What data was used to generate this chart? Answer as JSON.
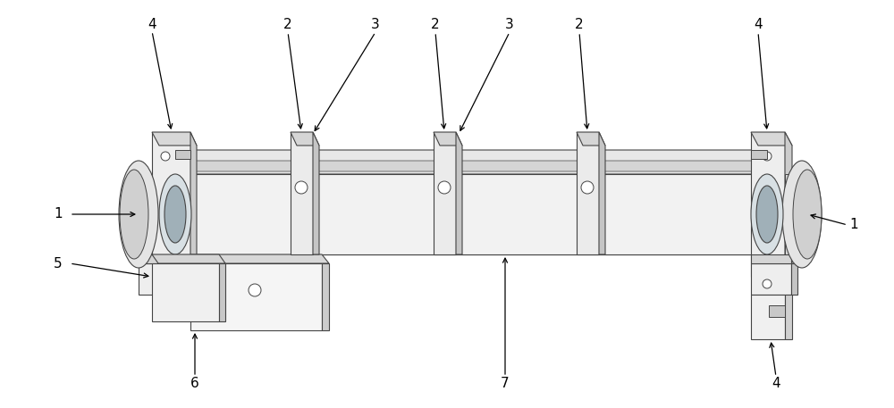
{
  "bg_color": "#ffffff",
  "lc": "#444444",
  "figsize": [
    10.0,
    4.57
  ],
  "dpi": 100,
  "fs": 11
}
